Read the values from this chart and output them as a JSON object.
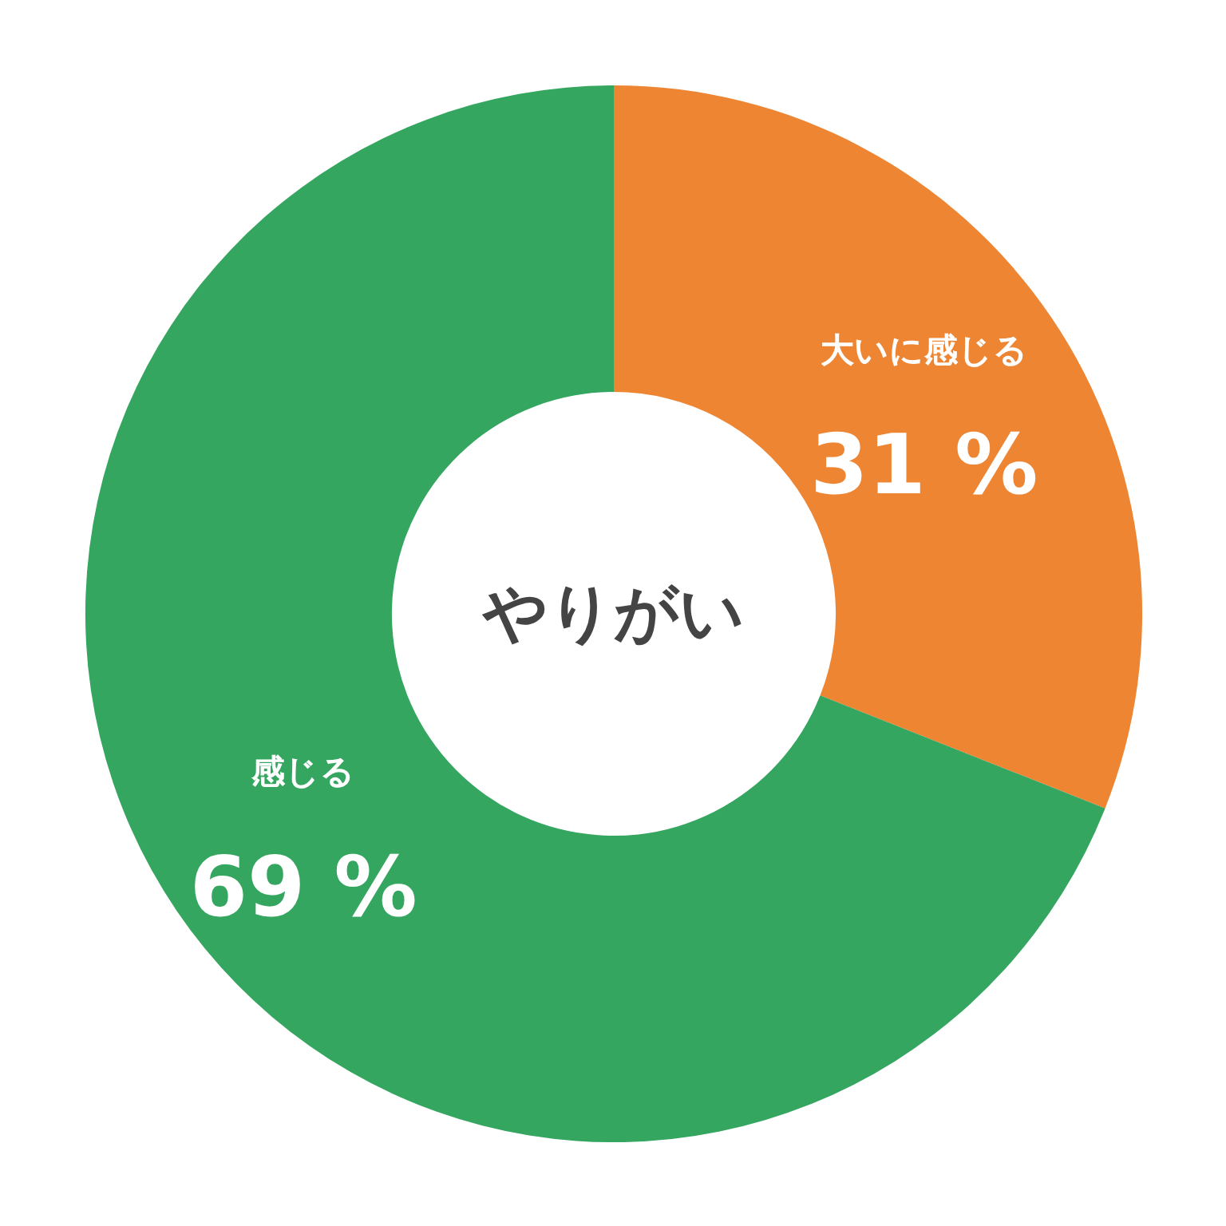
{
  "chart_data": {
    "type": "donut",
    "title": "やりがい",
    "categories": [
      "大いに感じる",
      "感じる"
    ],
    "values": [
      31,
      69
    ],
    "colors": [
      "#ee8533",
      "#34a660"
    ],
    "value_labels": [
      "31 %",
      "69 %"
    ]
  }
}
